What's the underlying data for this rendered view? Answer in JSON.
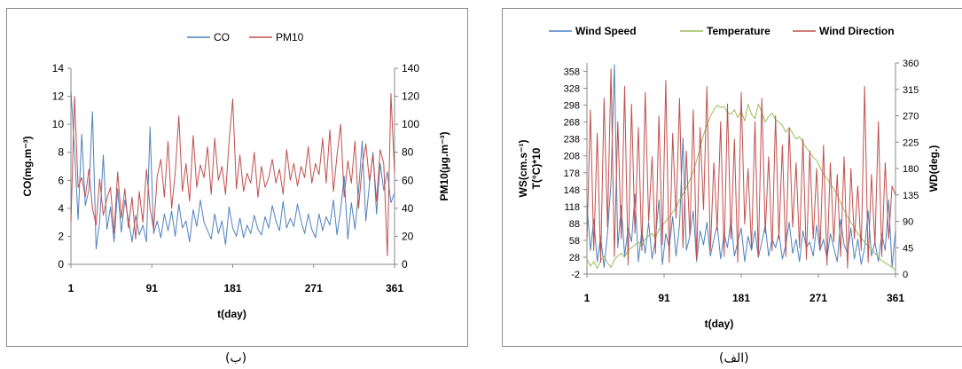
{
  "chart_data": [
    {
      "type": "line",
      "caption": "(ب)",
      "xlabel": "t(day)",
      "ylabel": "CO(mg.m⁻³)",
      "y2label": "PM10(µg.m⁻³)",
      "xticks": [
        "1",
        "91",
        "181",
        "271",
        "361"
      ],
      "xlim": [
        1,
        361
      ],
      "yticks": [
        "0",
        "2",
        "4",
        "6",
        "8",
        "10",
        "12",
        "14"
      ],
      "ylim": [
        0,
        14
      ],
      "y2ticks": [
        "0",
        "20",
        "40",
        "60",
        "80",
        "100",
        "120",
        "140"
      ],
      "y2lim": [
        0,
        140
      ],
      "legend_position": "top",
      "grid": false,
      "series": [
        {
          "name": "CO",
          "axis": "left",
          "color": "#4f81bd",
          "x": [
            1,
            5,
            9,
            13,
            17,
            21,
            25,
            29,
            33,
            37,
            41,
            45,
            49,
            53,
            57,
            61,
            65,
            69,
            73,
            77,
            81,
            85,
            89,
            93,
            97,
            101,
            105,
            109,
            113,
            117,
            121,
            125,
            129,
            133,
            137,
            141,
            145,
            149,
            153,
            157,
            161,
            165,
            169,
            173,
            177,
            181,
            185,
            189,
            193,
            197,
            201,
            205,
            209,
            213,
            217,
            221,
            225,
            229,
            233,
            237,
            241,
            245,
            249,
            253,
            257,
            261,
            265,
            269,
            273,
            277,
            281,
            285,
            289,
            293,
            297,
            301,
            305,
            309,
            313,
            317,
            321,
            325,
            329,
            333,
            337,
            341,
            345,
            349,
            353,
            357,
            361
          ],
          "values": [
            12.4,
            8.1,
            3.2,
            9.3,
            4.2,
            5.3,
            10.9,
            1.1,
            3.0,
            7.8,
            2.5,
            4.1,
            1.6,
            5.4,
            2.3,
            4.6,
            3.2,
            1.6,
            3.5,
            2.1,
            2.8,
            1.6,
            9.8,
            2.2,
            3.1,
            1.9,
            3.6,
            2.4,
            3.8,
            2.0,
            4.3,
            2.6,
            3.1,
            1.6,
            3.9,
            2.7,
            4.6,
            3.0,
            2.4,
            1.8,
            3.6,
            2.2,
            3.1,
            1.4,
            4.1,
            2.6,
            2.0,
            3.3,
            1.9,
            2.8,
            2.2,
            3.5,
            2.5,
            2.1,
            3.4,
            2.6,
            4.2,
            3.1,
            2.4,
            4.5,
            2.6,
            3.3,
            2.7,
            4.3,
            3.1,
            2.2,
            3.6,
            2.5,
            1.9,
            3.6,
            2.4,
            3.4,
            2.8,
            4.6,
            2.1,
            3.9,
            6.3,
            1.8,
            4.4,
            2.5,
            5.2,
            8.8,
            3.1,
            5.7,
            8.0,
            3.6,
            7.2,
            5.3,
            6.6,
            4.4,
            5.1
          ]
        },
        {
          "name": "PM10",
          "axis": "right",
          "color": "#c0504d",
          "x": [
            1,
            5,
            9,
            13,
            17,
            21,
            25,
            29,
            33,
            37,
            41,
            45,
            49,
            53,
            57,
            61,
            65,
            69,
            73,
            77,
            81,
            85,
            89,
            93,
            97,
            101,
            105,
            109,
            113,
            117,
            121,
            125,
            129,
            133,
            137,
            141,
            145,
            149,
            153,
            157,
            161,
            165,
            169,
            173,
            177,
            181,
            185,
            189,
            193,
            197,
            201,
            205,
            209,
            213,
            217,
            221,
            225,
            229,
            233,
            237,
            241,
            245,
            249,
            253,
            257,
            261,
            265,
            269,
            273,
            277,
            281,
            285,
            289,
            293,
            297,
            301,
            305,
            309,
            313,
            317,
            321,
            325,
            329,
            333,
            337,
            341,
            345,
            349,
            353,
            357,
            361
          ],
          "values": [
            30,
            120,
            55,
            62,
            48,
            68,
            40,
            28,
            61,
            35,
            47,
            55,
            22,
            66,
            33,
            54,
            26,
            48,
            18,
            52,
            30,
            68,
            40,
            25,
            63,
            75,
            48,
            88,
            40,
            65,
            106,
            52,
            72,
            45,
            92,
            55,
            71,
            62,
            84,
            50,
            90,
            60,
            70,
            50,
            88,
            118,
            54,
            78,
            52,
            65,
            58,
            80,
            48,
            70,
            55,
            62,
            75,
            58,
            68,
            50,
            82,
            60,
            72,
            56,
            70,
            62,
            84,
            58,
            72,
            64,
            90,
            58,
            96,
            52,
            78,
            100,
            48,
            74,
            58,
            88,
            40,
            70,
            86,
            60,
            78,
            45,
            82,
            72,
            6,
            122,
            65
          ]
        }
      ]
    },
    {
      "type": "line",
      "caption": "(الف)",
      "xlabel": "t(day)",
      "ylabel": "WS(cm.s⁻¹)",
      "ylabel2": "T(°C)*10",
      "y2label": "WD(deg.)",
      "xticks": [
        "1",
        "91",
        "181",
        "271",
        "361"
      ],
      "xlim": [
        1,
        361
      ],
      "yticks": [
        "-2",
        "28",
        "58",
        "88",
        "118",
        "148",
        "178",
        "208",
        "238",
        "268",
        "298",
        "328",
        "358"
      ],
      "ylim": [
        -2,
        373
      ],
      "y2ticks": [
        "0",
        "45",
        "90",
        "135",
        "180",
        "225",
        "270",
        "315",
        "360"
      ],
      "y2lim": [
        0,
        360
      ],
      "legend_position": "top",
      "grid": false,
      "series": [
        {
          "name": "Wind Speed",
          "axis": "left",
          "color": "#4f81bd",
          "x": [
            1,
            5,
            9,
            13,
            17,
            21,
            25,
            29,
            33,
            37,
            41,
            45,
            49,
            53,
            57,
            61,
            65,
            69,
            73,
            77,
            81,
            85,
            89,
            93,
            97,
            101,
            105,
            109,
            113,
            117,
            121,
            125,
            129,
            133,
            137,
            141,
            145,
            149,
            153,
            157,
            161,
            165,
            169,
            173,
            177,
            181,
            185,
            189,
            193,
            197,
            201,
            205,
            209,
            213,
            217,
            221,
            225,
            229,
            233,
            237,
            241,
            245,
            249,
            253,
            257,
            261,
            265,
            269,
            273,
            277,
            281,
            285,
            289,
            293,
            297,
            301,
            305,
            309,
            313,
            317,
            321,
            325,
            329,
            333,
            337,
            341,
            345,
            349,
            353,
            357,
            361
          ],
          "values": [
            120,
            40,
            95,
            20,
            65,
            10,
            70,
            160,
            370,
            45,
            120,
            30,
            80,
            55,
            140,
            20,
            75,
            35,
            90,
            25,
            60,
            130,
            15,
            70,
            45,
            100,
            30,
            85,
            240,
            40,
            65,
            110,
            20,
            75,
            50,
            90,
            30,
            60,
            85,
            25,
            70,
            45,
            95,
            30,
            55,
            80,
            20,
            65,
            40,
            75,
            28,
            55,
            85,
            30,
            60,
            45,
            70,
            25,
            50,
            90,
            35,
            60,
            20,
            75,
            45,
            55,
            30,
            85,
            40,
            60,
            25,
            70,
            45,
            20,
            95,
            50,
            35,
            80,
            25,
            60,
            15,
            45,
            110,
            30,
            55,
            20,
            70,
            40,
            130,
            10,
            75
          ]
        },
        {
          "name": "Temperature",
          "axis": "left",
          "color": "#9bbb59",
          "x": [
            1,
            5,
            9,
            13,
            17,
            21,
            25,
            29,
            33,
            37,
            41,
            45,
            49,
            53,
            57,
            61,
            65,
            69,
            73,
            77,
            81,
            85,
            89,
            93,
            97,
            101,
            105,
            109,
            113,
            117,
            121,
            125,
            129,
            133,
            137,
            141,
            145,
            149,
            153,
            157,
            161,
            165,
            169,
            173,
            177,
            181,
            185,
            189,
            193,
            197,
            201,
            205,
            209,
            213,
            217,
            221,
            225,
            229,
            233,
            237,
            241,
            245,
            249,
            253,
            257,
            261,
            265,
            269,
            273,
            277,
            281,
            285,
            289,
            293,
            297,
            301,
            305,
            309,
            313,
            317,
            321,
            325,
            329,
            333,
            337,
            341,
            345,
            349,
            353,
            357,
            361
          ],
          "values": [
            25,
            12,
            20,
            8,
            22,
            30,
            18,
            10,
            24,
            30,
            35,
            28,
            40,
            45,
            50,
            55,
            48,
            60,
            66,
            70,
            62,
            78,
            85,
            92,
            100,
            108,
            115,
            130,
            140,
            152,
            165,
            180,
            200,
            222,
            245,
            262,
            278,
            290,
            298,
            294,
            296,
            285,
            282,
            290,
            276,
            288,
            270,
            300,
            282,
            274,
            300,
            286,
            268,
            278,
            284,
            272,
            268,
            262,
            250,
            258,
            248,
            238,
            242,
            232,
            222,
            215,
            205,
            200,
            188,
            175,
            168,
            158,
            150,
            138,
            125,
            112,
            100,
            90,
            80,
            70,
            62,
            55,
            48,
            42,
            35,
            28,
            22,
            18,
            14,
            10,
            5
          ]
        },
        {
          "name": "Wind Direction",
          "axis": "right",
          "color": "#c0504d",
          "x": [
            1,
            5,
            9,
            13,
            17,
            21,
            25,
            29,
            33,
            37,
            41,
            45,
            49,
            53,
            57,
            61,
            65,
            69,
            73,
            77,
            81,
            85,
            89,
            93,
            97,
            101,
            105,
            109,
            113,
            117,
            121,
            125,
            129,
            133,
            137,
            141,
            145,
            149,
            153,
            157,
            161,
            165,
            169,
            173,
            177,
            181,
            185,
            189,
            193,
            197,
            201,
            205,
            209,
            213,
            217,
            221,
            225,
            229,
            233,
            237,
            241,
            245,
            249,
            253,
            257,
            261,
            265,
            269,
            273,
            277,
            281,
            285,
            289,
            293,
            297,
            301,
            305,
            309,
            313,
            317,
            321,
            325,
            329,
            333,
            337,
            341,
            345,
            349,
            353,
            357,
            361
          ],
          "values": [
            60,
            280,
            40,
            240,
            20,
            300,
            80,
            350,
            30,
            260,
            60,
            320,
            15,
            290,
            70,
            250,
            40,
            310,
            90,
            200,
            35,
            270,
            50,
            330,
            20,
            240,
            95,
            300,
            45,
            210,
            65,
            280,
            25,
            250,
            110,
            320,
            40,
            190,
            75,
            260,
            30,
            290,
            60,
            230,
            20,
            310,
            85,
            180,
            45,
            260,
            30,
            300,
            70,
            200,
            40,
            270,
            60,
            220,
            30,
            250,
            80,
            190,
            45,
            230,
            25,
            210,
            60,
            180,
            40,
            220,
            15,
            190,
            55,
            170,
            30,
            200,
            10,
            180,
            60,
            150,
            40,
            320,
            20,
            170,
            50,
            260,
            30,
            190,
            60,
            150,
            135
          ]
        }
      ]
    }
  ]
}
